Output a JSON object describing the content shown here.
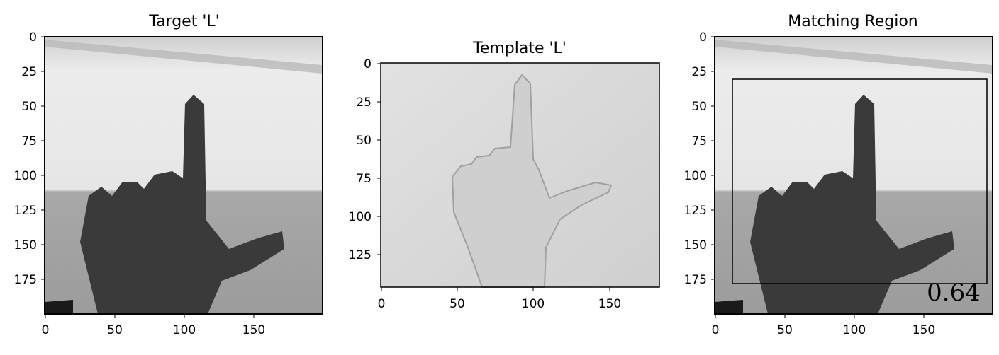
{
  "panels": [
    {
      "title": "Target 'L'",
      "xticks": [
        "0",
        "50",
        "100",
        "150"
      ],
      "yticks": [
        "0",
        "25",
        "50",
        "75",
        "100",
        "125",
        "150",
        "175"
      ]
    },
    {
      "title": "Template 'L'",
      "xticks": [
        "0",
        "50",
        "100",
        "150"
      ],
      "yticks": [
        "0",
        "25",
        "50",
        "75",
        "100",
        "125"
      ]
    },
    {
      "title": "Matching Region",
      "xticks": [
        "0",
        "50",
        "100",
        "150"
      ],
      "yticks": [
        "0",
        "25",
        "50",
        "75",
        "100",
        "125",
        "150",
        "175"
      ],
      "score_label": "0.64"
    }
  ],
  "colors": {
    "wall_top": "#e8e8e8",
    "wall_lower": "#a6a6a6",
    "hand_dark": "#3b3b3b",
    "hand_light": "#d2d2d2",
    "template_bg": "#dcdcdc"
  }
}
